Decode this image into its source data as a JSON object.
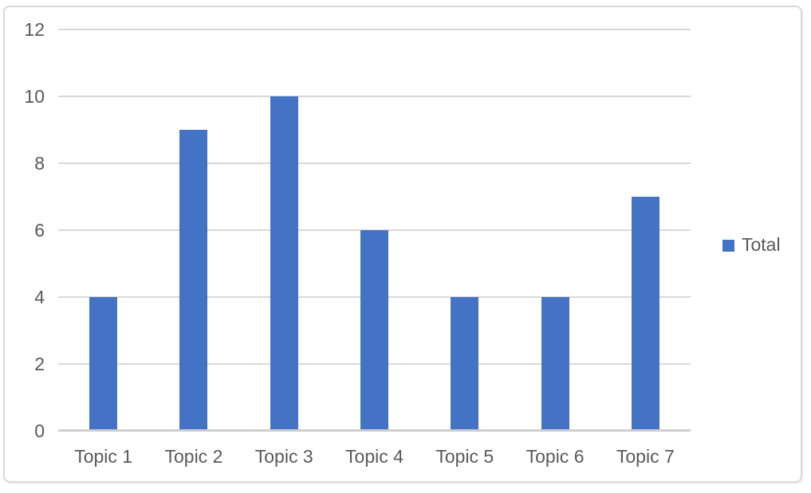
{
  "chart_data": {
    "type": "bar",
    "categories": [
      "Topic 1",
      "Topic 2",
      "Topic 3",
      "Topic 4",
      "Topic 5",
      "Topic 6",
      "Topic 7"
    ],
    "series": [
      {
        "name": "Total",
        "values": [
          4,
          9,
          10,
          6,
          4,
          4,
          7
        ]
      }
    ],
    "legend": [
      "Total"
    ],
    "legend_position": "right",
    "ylim": [
      0,
      12
    ],
    "yticks": [
      0,
      2,
      4,
      6,
      8,
      10,
      12
    ],
    "grid": true,
    "xlabel": "",
    "ylabel": "",
    "colors": {
      "bar": "#4472C4",
      "gridline": "#D9D9D9",
      "axis_line": "#D0CECE",
      "text": "#595959",
      "frame_border": "#D9D9D9"
    }
  }
}
